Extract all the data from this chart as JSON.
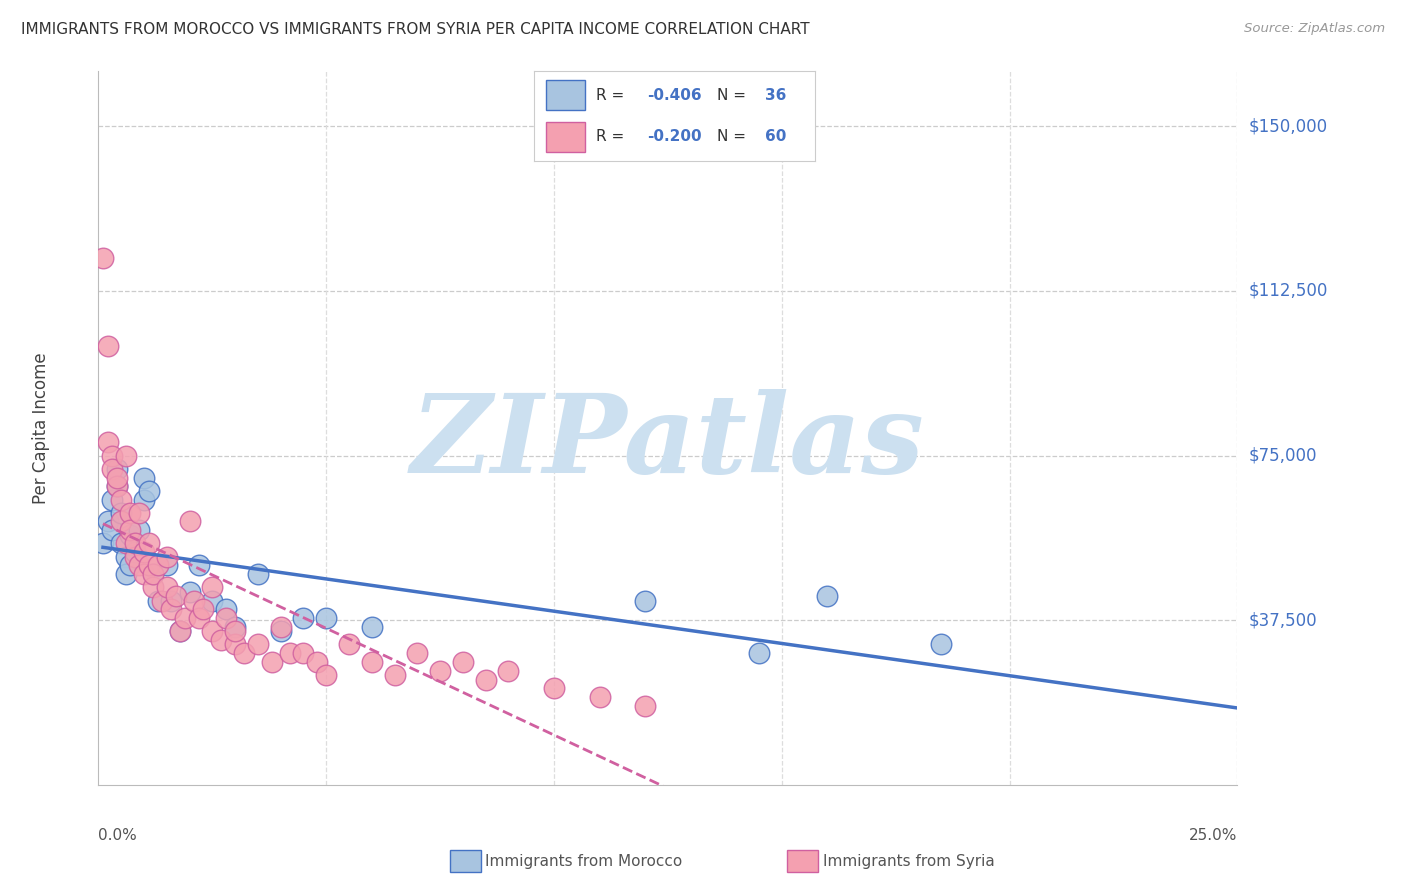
{
  "title": "IMMIGRANTS FROM MOROCCO VS IMMIGRANTS FROM SYRIA PER CAPITA INCOME CORRELATION CHART",
  "source": "Source: ZipAtlas.com",
  "ylabel": "Per Capita Income",
  "yticks": [
    0,
    37500,
    75000,
    112500,
    150000
  ],
  "ytick_labels": [
    "",
    "$37,500",
    "$75,000",
    "$112,500",
    "$150,000"
  ],
  "xlim": [
    0.0,
    0.25
  ],
  "ylim": [
    0,
    162500
  ],
  "morocco_color": "#a8c4e0",
  "syria_color": "#f4a0b0",
  "morocco_edge_color": "#4472c4",
  "syria_edge_color": "#d060a0",
  "morocco_line_color": "#4472c4",
  "syria_line_color": "#d060a0",
  "watermark": "ZIPatlas",
  "watermark_color": "#cce0f0",
  "legend_r1": "R = -0.406",
  "legend_n1": "N = 36",
  "legend_r2": "R = -0.200",
  "legend_n2": "N = 60",
  "morocco_x": [
    0.001,
    0.002,
    0.003,
    0.003,
    0.004,
    0.004,
    0.005,
    0.005,
    0.006,
    0.006,
    0.007,
    0.007,
    0.008,
    0.009,
    0.01,
    0.01,
    0.011,
    0.012,
    0.013,
    0.015,
    0.016,
    0.018,
    0.02,
    0.022,
    0.025,
    0.028,
    0.03,
    0.035,
    0.04,
    0.045,
    0.05,
    0.06,
    0.12,
    0.145,
    0.16,
    0.185
  ],
  "morocco_y": [
    55000,
    60000,
    58000,
    65000,
    72000,
    68000,
    62000,
    55000,
    52000,
    48000,
    57000,
    50000,
    53000,
    58000,
    70000,
    65000,
    67000,
    48000,
    42000,
    50000,
    42000,
    35000,
    44000,
    50000,
    42000,
    40000,
    36000,
    48000,
    35000,
    38000,
    38000,
    36000,
    42000,
    30000,
    43000,
    32000
  ],
  "syria_x": [
    0.001,
    0.002,
    0.002,
    0.003,
    0.003,
    0.004,
    0.004,
    0.005,
    0.005,
    0.006,
    0.006,
    0.007,
    0.007,
    0.008,
    0.008,
    0.009,
    0.009,
    0.01,
    0.01,
    0.011,
    0.011,
    0.012,
    0.012,
    0.013,
    0.014,
    0.015,
    0.015,
    0.016,
    0.017,
    0.018,
    0.019,
    0.02,
    0.021,
    0.022,
    0.023,
    0.025,
    0.025,
    0.027,
    0.028,
    0.03,
    0.03,
    0.032,
    0.035,
    0.038,
    0.04,
    0.042,
    0.045,
    0.048,
    0.05,
    0.055,
    0.06,
    0.065,
    0.07,
    0.075,
    0.08,
    0.085,
    0.09,
    0.1,
    0.11,
    0.12
  ],
  "syria_y": [
    120000,
    100000,
    78000,
    75000,
    72000,
    68000,
    70000,
    65000,
    60000,
    75000,
    55000,
    62000,
    58000,
    52000,
    55000,
    50000,
    62000,
    48000,
    53000,
    50000,
    55000,
    45000,
    48000,
    50000,
    42000,
    45000,
    52000,
    40000,
    43000,
    35000,
    38000,
    60000,
    42000,
    38000,
    40000,
    35000,
    45000,
    33000,
    38000,
    32000,
    35000,
    30000,
    32000,
    28000,
    36000,
    30000,
    30000,
    28000,
    25000,
    32000,
    28000,
    25000,
    30000,
    26000,
    28000,
    24000,
    26000,
    22000,
    20000,
    18000
  ]
}
